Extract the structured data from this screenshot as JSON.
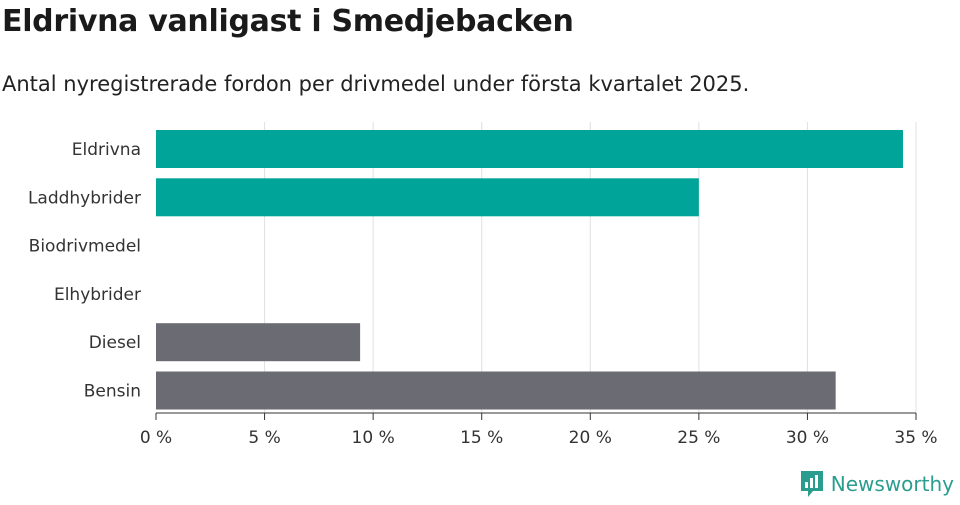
{
  "chart_data": {
    "type": "bar",
    "orientation": "horizontal",
    "title": "Eldrivna vanligast i Smedjebacken",
    "subtitle": "Antal nyregistrerade fordon per drivmedel under första kvartalet 2025.",
    "categories": [
      "Eldrivna",
      "Laddhybrider",
      "Biodrivmedel",
      "Elhybrider",
      "Diesel",
      "Bensin"
    ],
    "values": [
      34.4,
      25.0,
      0,
      0,
      9.4,
      31.3
    ],
    "bar_colors": [
      "#00a499",
      "#00a499",
      "#00a499",
      "#00a499",
      "#6b6b73",
      "#6b6b73"
    ],
    "xlim": [
      0,
      35
    ],
    "xticks": [
      0,
      5,
      10,
      15,
      20,
      25,
      30,
      35
    ],
    "xtick_labels": [
      "0 %",
      "5 %",
      "10 %",
      "15 %",
      "20 %",
      "25 %",
      "30 %",
      "35 %"
    ],
    "grid": "vertical",
    "xlabel": "",
    "ylabel": ""
  },
  "brand": {
    "name": "Newsworthy",
    "color": "#2a9d8f"
  }
}
